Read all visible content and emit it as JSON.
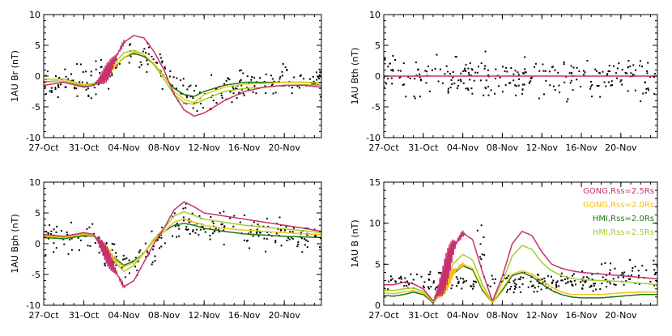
{
  "chart_data": [
    {
      "type": "line",
      "ylabel": "1AU Br  (nT)",
      "ylim": [
        -10,
        10
      ],
      "yticks": [
        -10,
        -5,
        0,
        5,
        10
      ],
      "x_ticks": [
        "27-Oct",
        "31-Oct",
        "04-Nov",
        "08-Nov",
        "12-Nov",
        "16-Nov",
        "20-Nov"
      ],
      "x_days": [
        0,
        4,
        8,
        12,
        16,
        20,
        24
      ],
      "xlim_days": [
        0,
        27.7
      ],
      "series": [
        {
          "name": "GONG,Rss=2.5Rs",
          "color": "#c8306e",
          "x": [
            0,
            2,
            4,
            5,
            6,
            6.5,
            7,
            7.5,
            8,
            9,
            10,
            11,
            12,
            13,
            14,
            15,
            16,
            18,
            20,
            22,
            24,
            26,
            27.7
          ],
          "y": [
            -1.5,
            -1,
            -1.8,
            -1.5,
            0,
            1,
            2.5,
            4,
            5.5,
            6.6,
            6.2,
            4,
            1,
            -3,
            -5.5,
            -6.5,
            -6,
            -4,
            -2.5,
            -1.8,
            -1.5,
            -1.5,
            -1.8
          ]
        },
        {
          "name": "GONG,Rss=2.0Rs",
          "color": "#f2c21a",
          "x": [
            0,
            2,
            4,
            5,
            6,
            7,
            8,
            9,
            10,
            11,
            12,
            13,
            14,
            15,
            16,
            18,
            20,
            22,
            24,
            26,
            27.7
          ],
          "y": [
            -1,
            -0.8,
            -1.5,
            -1.5,
            0,
            1.5,
            3,
            4,
            3.5,
            2,
            0,
            -2.5,
            -3.8,
            -4.3,
            -3,
            -1.8,
            -1.3,
            -1.2,
            -1,
            -1,
            -1.2
          ]
        },
        {
          "name": "HMI,Rss=2.0Rs",
          "color": "#1a7a10",
          "x": [
            0,
            2,
            4,
            5,
            6,
            7,
            8,
            9,
            10,
            11,
            12,
            13,
            14,
            15,
            16,
            18,
            20,
            22,
            24,
            26,
            27.7
          ],
          "y": [
            -0.9,
            -0.8,
            -1.6,
            -1.4,
            0,
            1.5,
            3,
            3.7,
            3.2,
            2,
            0,
            -2,
            -3,
            -3.3,
            -2.5,
            -1.5,
            -1,
            -1,
            -1,
            -1,
            -1.1
          ]
        },
        {
          "name": "HMI,Rss=2.5Rs",
          "color": "#9fd12b",
          "x": [
            0,
            2,
            4,
            5,
            6,
            7,
            8,
            9,
            10,
            11,
            12,
            13,
            14,
            15,
            16,
            18,
            20,
            22,
            24,
            26,
            27.7
          ],
          "y": [
            -0.5,
            -0.5,
            -1.4,
            -1.2,
            0.2,
            2,
            3.8,
            4.2,
            3.5,
            1.8,
            -0.5,
            -3,
            -4.3,
            -4.6,
            -3.8,
            -2.5,
            -2,
            -1.8,
            -1.5,
            -1.4,
            -1.5
          ]
        }
      ],
      "observations_note": ""
    },
    {
      "type": "line",
      "ylabel": "1AU Bth  (nT)",
      "ylim": [
        -10,
        10
      ],
      "yticks": [
        -10,
        -5,
        0,
        5,
        10
      ],
      "x_ticks": [
        "27-Oct",
        "31-Oct",
        "04-Nov",
        "08-Nov",
        "12-Nov",
        "16-Nov",
        "20-Nov"
      ],
      "x_days": [
        0,
        4,
        8,
        12,
        16,
        20,
        24
      ],
      "xlim_days": [
        0,
        27.7
      ],
      "series": [
        {
          "name": "GONG,Rss=2.5Rs",
          "color": "#c8306e",
          "x": [
            0,
            27.7
          ],
          "y": [
            0,
            0
          ]
        }
      ]
    },
    {
      "type": "line",
      "ylabel": "1AU Bph  (nT)",
      "ylim": [
        -10,
        10
      ],
      "yticks": [
        -10,
        -5,
        0,
        5,
        10
      ],
      "x_ticks": [
        "27-Oct",
        "31-Oct",
        "04-Nov",
        "08-Nov",
        "12-Nov",
        "16-Nov",
        "20-Nov"
      ],
      "x_days": [
        0,
        4,
        8,
        12,
        16,
        20,
        24
      ],
      "xlim_days": [
        0,
        27.7
      ],
      "series": [
        {
          "name": "GONG,Rss=2.5Rs",
          "color": "#c8306e",
          "x": [
            0,
            2,
            4,
            5,
            6,
            7,
            8,
            9,
            10,
            11,
            12,
            13,
            14,
            15,
            16,
            18,
            20,
            22,
            24,
            26,
            27.7
          ],
          "y": [
            1.5,
            1.2,
            1.8,
            1.5,
            -1,
            -4,
            -7,
            -6,
            -3,
            0,
            2.5,
            5.5,
            6.8,
            6,
            5,
            4.5,
            4,
            3.5,
            3,
            2.5,
            2
          ]
        },
        {
          "name": "GONG,Rss=2.0Rs",
          "color": "#f2c21a",
          "x": [
            0,
            2,
            4,
            5,
            6,
            7,
            8,
            9,
            10,
            11,
            12,
            13,
            14,
            15,
            16,
            18,
            20,
            22,
            24,
            26,
            27.7
          ],
          "y": [
            1.2,
            1,
            1.5,
            1.3,
            -0.5,
            -2.5,
            -3.8,
            -3,
            -1.5,
            0.5,
            2,
            3.5,
            4,
            3.5,
            3,
            2.5,
            2.2,
            2,
            1.8,
            1.6,
            1.5
          ]
        },
        {
          "name": "HMI,Rss=2.0Rs",
          "color": "#1a7a10",
          "x": [
            0,
            2,
            4,
            5,
            6,
            7,
            8,
            9,
            10,
            11,
            12,
            13,
            14,
            15,
            16,
            18,
            20,
            22,
            24,
            26,
            27.7
          ],
          "y": [
            1,
            0.8,
            1.3,
            1.2,
            -0.5,
            -2.2,
            -3.5,
            -2.8,
            -1.5,
            0.5,
            2,
            3,
            3.3,
            3,
            2.5,
            2,
            1.6,
            1.4,
            1.2,
            1.1,
            1
          ]
        },
        {
          "name": "HMI,Rss=2.5Rs",
          "color": "#9fd12b",
          "x": [
            0,
            2,
            4,
            5,
            6,
            7,
            8,
            9,
            10,
            11,
            12,
            13,
            14,
            15,
            16,
            18,
            20,
            22,
            24,
            26,
            27.7
          ],
          "y": [
            1.3,
            1.1,
            1.6,
            1.4,
            -0.3,
            -2.8,
            -4.5,
            -3.5,
            -1.5,
            0.8,
            2.5,
            4.5,
            5.2,
            4.6,
            4,
            3.5,
            3,
            2.7,
            2.4,
            2.1,
            1.8
          ]
        }
      ]
    },
    {
      "type": "line",
      "ylabel": "1AU B  (nT)",
      "ylim": [
        0,
        15
      ],
      "yticks": [
        0,
        5,
        10,
        15
      ],
      "x_ticks": [
        "27-Oct",
        "31-Oct",
        "04-Nov",
        "08-Nov",
        "12-Nov",
        "16-Nov",
        "20-Nov"
      ],
      "x_days": [
        0,
        4,
        8,
        12,
        16,
        20,
        24
      ],
      "xlim_days": [
        0,
        27.7
      ],
      "legend": {
        "placement": "top-right",
        "entries": [
          {
            "label": "GONG,Rss=2.5Rs",
            "color": "#c8306e"
          },
          {
            "label": "GONG,Rss=2.0Rs",
            "color": "#f2c21a"
          },
          {
            "label": "HMI,Rss=2.0Rs",
            "color": "#1a7a10"
          },
          {
            "label": "HMI,Rss=2.5Rs",
            "color": "#9fd12b"
          }
        ]
      },
      "series": [
        {
          "name": "GONG,Rss=2.5Rs",
          "color": "#c8306e",
          "x": [
            0,
            1,
            2,
            3,
            4,
            5,
            6,
            7,
            8,
            9,
            10,
            11,
            12,
            13,
            14,
            15,
            16,
            17,
            18,
            19,
            20,
            22,
            24,
            26,
            27.7
          ],
          "y": [
            2.5,
            2.5,
            2.8,
            2.6,
            2,
            0.5,
            3,
            7,
            8.8,
            8,
            4,
            0.5,
            3.5,
            7.5,
            9,
            8.5,
            6.5,
            5,
            4.5,
            4.2,
            4,
            3.8,
            3.6,
            3.4,
            3.2
          ]
        },
        {
          "name": "GONG,Rss=2.0Rs",
          "color": "#f2c21a",
          "x": [
            0,
            1,
            2,
            3,
            4,
            5,
            6,
            7,
            8,
            9,
            10,
            11,
            12,
            13,
            14,
            15,
            16,
            17,
            18,
            19,
            20,
            22,
            24,
            26,
            27.7
          ],
          "y": [
            1.5,
            1.4,
            1.6,
            1.8,
            1.5,
            0.4,
            2,
            4,
            5,
            4.5,
            2,
            0.3,
            2,
            3.8,
            4.2,
            3.8,
            3,
            2.2,
            1.6,
            1.3,
            1.3,
            1.3,
            1.5,
            1.6,
            1.6
          ]
        },
        {
          "name": "HMI,Rss=2.0Rs",
          "color": "#1a7a10",
          "x": [
            0,
            1,
            2,
            3,
            4,
            5,
            6,
            7,
            8,
            9,
            10,
            11,
            12,
            13,
            14,
            15,
            16,
            17,
            18,
            19,
            20,
            22,
            24,
            26,
            27.7
          ],
          "y": [
            1.2,
            1.1,
            1.3,
            1.6,
            1.3,
            0.3,
            1.8,
            3.8,
            4.8,
            4.3,
            1.8,
            0.3,
            1.8,
            3.6,
            4,
            3.5,
            2.6,
            1.8,
            1.3,
            1,
            0.9,
            0.9,
            1.1,
            1.3,
            1.3
          ]
        },
        {
          "name": "HMI,Rss=2.5Rs",
          "color": "#9fd12b",
          "x": [
            0,
            1,
            2,
            3,
            4,
            5,
            6,
            7,
            8,
            9,
            10,
            11,
            12,
            13,
            14,
            15,
            16,
            17,
            18,
            19,
            20,
            22,
            24,
            26,
            27.7
          ],
          "y": [
            1.8,
            1.8,
            2,
            2.1,
            1.7,
            0.4,
            2.3,
            5,
            6.2,
            5.5,
            2.5,
            0.4,
            2.8,
            6,
            7.3,
            6.8,
            5.2,
            4.2,
            3.6,
            3.3,
            3.1,
            3,
            2.9,
            2.7,
            2.5
          ]
        }
      ]
    }
  ]
}
